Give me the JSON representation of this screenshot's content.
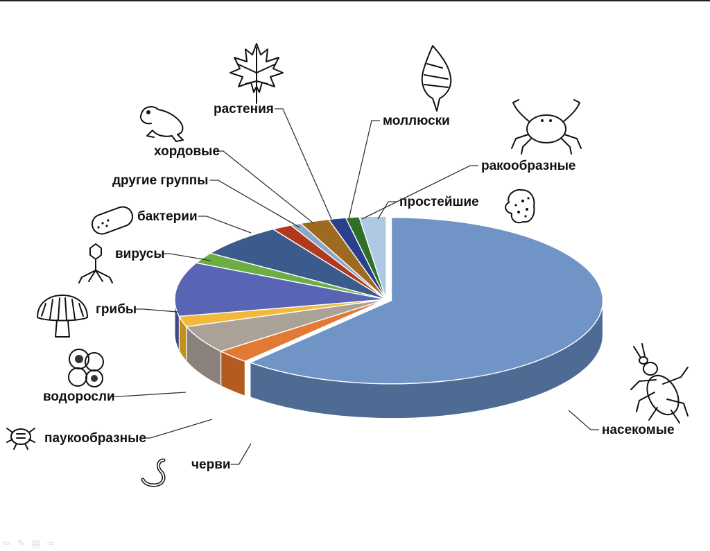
{
  "chart_data": {
    "type": "pie",
    "style": "3d-exploded-pie",
    "title": "",
    "slices": [
      {
        "label": "насекомые",
        "value": 60.4,
        "color": "#7094C6",
        "side": "#4E6B93"
      },
      {
        "label": "черви",
        "value": 2.6,
        "color": "#E27A35",
        "side": "#B35B20"
      },
      {
        "label": "паукообразные",
        "value": 5.3,
        "color": "#AAA197",
        "side": "#8A827A"
      },
      {
        "label": "водоросли",
        "value": 2.0,
        "color": "#F1B93A",
        "side": "#C2911C"
      },
      {
        "label": "грибы",
        "value": 10.3,
        "color": "#5A64B4",
        "side": "#3E468A"
      },
      {
        "label": "вирусы",
        "value": 2.1,
        "color": "#6BAE46",
        "side": "#4E8B2F"
      },
      {
        "label": "бактерии",
        "value": 6.5,
        "color": "#3A5B8C",
        "side": "#2A4369"
      },
      {
        "label": "другие группы",
        "value": 1.5,
        "color": "#B0391E",
        "side": "#8A2A14"
      },
      {
        "label": "хордовые",
        "value": 0.8,
        "color": "#8BA7C7",
        "side": "#6A87A8"
      },
      {
        "label": "растения",
        "value": 2.2,
        "color": "#9E6A20",
        "side": "#7A5018"
      },
      {
        "label": "моллюски",
        "value": 1.3,
        "color": "#2B3F8A",
        "side": "#1E2C66"
      },
      {
        "label": "ракообразные",
        "value": 1.0,
        "color": "#2E6F2A",
        "side": "#1F4F1D"
      },
      {
        "label": "простейшие",
        "value": 2.0,
        "color": "#AFC8E4",
        "side": "#8BA6C4"
      }
    ]
  },
  "nav_icons": [
    "arrow-left-icon",
    "pen-icon",
    "menu-icon",
    "arrow-right-icon"
  ]
}
